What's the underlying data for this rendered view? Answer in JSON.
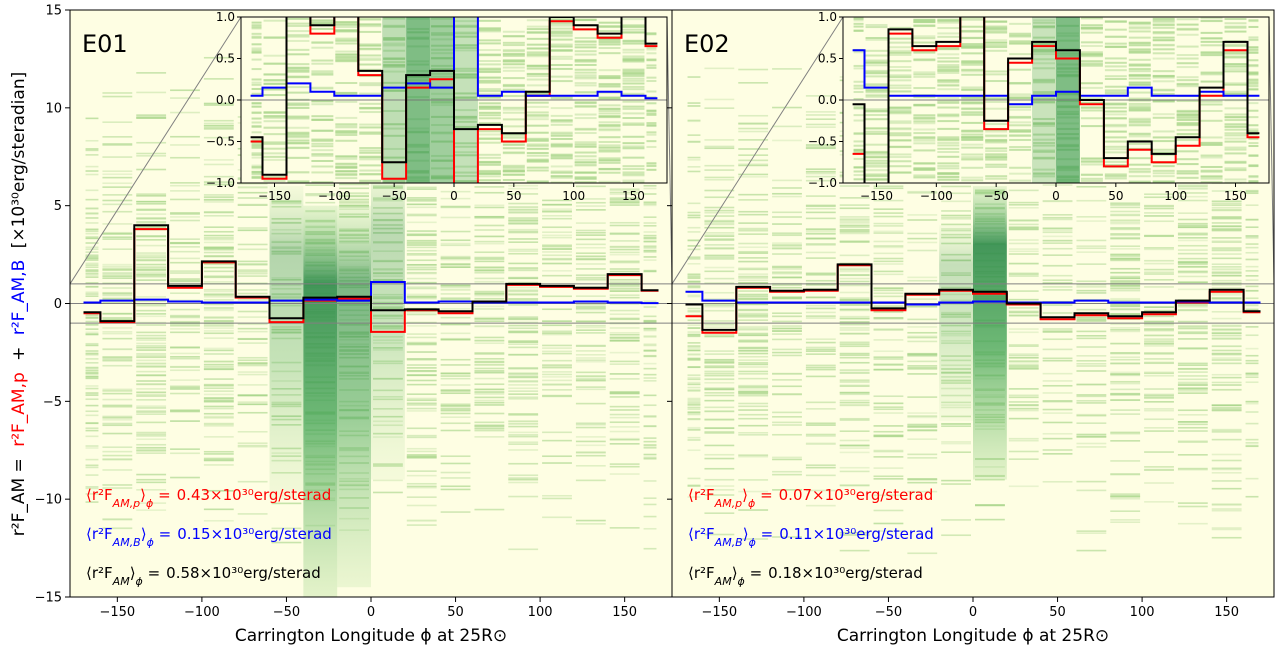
{
  "figure": {
    "ylabel": "r²F_AM = r²F_AM,p + r²F_AM,B [×10³⁰erg/steradian]",
    "ylabel_parts": {
      "total": "r²F_AM =",
      "p": "r²F_AM,p",
      "plus": "+",
      "b": "r²F_AM,B",
      "units": "[×10³⁰erg/steradian]"
    }
  },
  "chart_data": [
    {
      "type": "line",
      "panel": "E01",
      "title": "E01",
      "xlabel": "Carrington Longitude ϕ at 25R⊙",
      "xlim": [
        -178,
        178
      ],
      "ylim": [
        -15,
        15
      ],
      "xticks": [
        -150,
        -100,
        -50,
        0,
        50,
        100,
        150
      ],
      "yticks": [
        -15,
        -10,
        -5,
        0,
        5,
        10,
        15
      ],
      "bin_edges": [
        -170,
        -160,
        -140,
        -120,
        -100,
        -80,
        -60,
        -40,
        -20,
        0,
        20,
        40,
        60,
        80,
        100,
        120,
        140,
        160,
        170
      ],
      "series": [
        {
          "key": "p",
          "color": "#ff0000",
          "values": [
            -0.5,
            -0.95,
            3.8,
            0.8,
            2.1,
            0.3,
            -0.95,
            0.15,
            0.25,
            -1.45,
            -0.35,
            -0.5,
            0.05,
            0.95,
            0.85,
            0.75,
            1.45,
            0.65
          ]
        },
        {
          "key": "b",
          "color": "#0000ff",
          "values": [
            0.05,
            0.15,
            0.2,
            0.1,
            0.05,
            0.05,
            0.15,
            0.2,
            0.15,
            1.1,
            0.05,
            0.1,
            0.05,
            0.05,
            0.05,
            0.1,
            0.05,
            0.02
          ]
        },
        {
          "key": "total",
          "color": "#000000",
          "values": [
            -0.45,
            -0.9,
            4.0,
            0.9,
            2.15,
            0.35,
            -0.75,
            0.3,
            0.35,
            -0.35,
            -0.3,
            -0.4,
            0.1,
            1.0,
            0.9,
            0.8,
            1.5,
            0.68
          ]
        }
      ],
      "density_columns": [
        {
          "x0": -40,
          "x1": -20,
          "dark": 1.0,
          "ymin": -15,
          "ymax": 5
        },
        {
          "x0": -20,
          "x1": 0,
          "dark": 0.7,
          "ymin": -14.5,
          "ymax": 5
        },
        {
          "x0": -60,
          "x1": -40,
          "dark": 0.4,
          "ymin": -10,
          "ymax": 6
        },
        {
          "x0": 0,
          "x1": 20,
          "dark": 0.35,
          "ymin": -9,
          "ymax": 7
        }
      ],
      "inset": {
        "xlim": [
          -178,
          178
        ],
        "ylim": [
          -1.0,
          1.0
        ],
        "xticks": [
          -150,
          -100,
          -50,
          0,
          50,
          100,
          150
        ],
        "yticks": [
          -1.0,
          -0.5,
          0.0,
          0.5,
          1.0
        ],
        "ytick_labels": [
          "−1.0",
          "−0.5",
          "0.0",
          "0.5",
          "1.0"
        ]
      },
      "annotations": [
        {
          "key": "p",
          "label": "⟨r²F_AM,p⟩ϕ =",
          "value": "0.43×10³⁰erg/sterad",
          "color": "#ff0000"
        },
        {
          "key": "b",
          "label": "⟨r²F_AM,B⟩ϕ =",
          "value": "0.15×10³⁰erg/sterad",
          "color": "#0000ff"
        },
        {
          "key": "total",
          "label": "⟨r²F_AM⟩ϕ =",
          "value": "0.58×10³⁰erg/sterad",
          "color": "#000000"
        }
      ]
    },
    {
      "type": "line",
      "panel": "E02",
      "title": "E02",
      "xlabel": "Carrington Longitude ϕ at 25R⊙",
      "xlim": [
        -178,
        178
      ],
      "ylim": [
        -15,
        15
      ],
      "xticks": [
        -150,
        -100,
        -50,
        0,
        50,
        100,
        150
      ],
      "yticks": [
        -15,
        -10,
        -5,
        0,
        5,
        10,
        15
      ],
      "bin_edges": [
        -170,
        -160,
        -140,
        -120,
        -100,
        -80,
        -60,
        -40,
        -20,
        0,
        20,
        40,
        60,
        80,
        100,
        120,
        140,
        160,
        170
      ],
      "series": [
        {
          "key": "p",
          "color": "#ff0000",
          "values": [
            -0.65,
            -1.5,
            0.8,
            0.6,
            0.65,
            1.95,
            -0.35,
            0.45,
            0.65,
            0.5,
            -0.05,
            -0.8,
            -0.6,
            -0.75,
            -0.55,
            0.05,
            0.6,
            -0.45
          ]
        },
        {
          "key": "b",
          "color": "#0000ff",
          "values": [
            0.6,
            0.15,
            0.05,
            0.05,
            0.05,
            0.05,
            0.05,
            -0.05,
            0.05,
            0.1,
            0.05,
            0.05,
            0.15,
            0.05,
            0.05,
            0.1,
            0.05,
            0.05
          ]
        },
        {
          "key": "total",
          "color": "#000000",
          "values": [
            -0.05,
            -1.35,
            0.85,
            0.65,
            0.7,
            2.0,
            -0.25,
            0.5,
            0.7,
            0.6,
            0.0,
            -0.7,
            -0.5,
            -0.65,
            -0.45,
            0.15,
            0.7,
            -0.4
          ]
        }
      ],
      "density_columns": [
        {
          "x0": 0,
          "x1": 20,
          "dark": 1.0,
          "ymin": -9,
          "ymax": 6
        },
        {
          "x0": -20,
          "x1": 0,
          "dark": 0.3,
          "ymin": -6,
          "ymax": 4
        }
      ],
      "inset": {
        "xlim": [
          -178,
          178
        ],
        "ylim": [
          -1.0,
          1.0
        ],
        "xticks": [
          -150,
          -100,
          -50,
          0,
          50,
          100,
          150
        ],
        "yticks": [
          -1.0,
          -0.5,
          0.0,
          0.5,
          1.0
        ],
        "ytick_labels": [
          "−1.0",
          "−0.5",
          "0.0",
          "0.5",
          "1.0"
        ]
      },
      "annotations": [
        {
          "key": "p",
          "label": "⟨r²F_AM,p⟩ϕ =",
          "value": "0.07×10³⁰erg/sterad",
          "color": "#ff0000"
        },
        {
          "key": "b",
          "label": "⟨r²F_AM,B⟩ϕ =",
          "value": "0.11×10³⁰erg/sterad",
          "color": "#0000ff"
        },
        {
          "key": "total",
          "label": "⟨r²F_AM⟩ϕ =",
          "value": "0.18×10³⁰erg/sterad",
          "color": "#000000"
        }
      ]
    }
  ]
}
